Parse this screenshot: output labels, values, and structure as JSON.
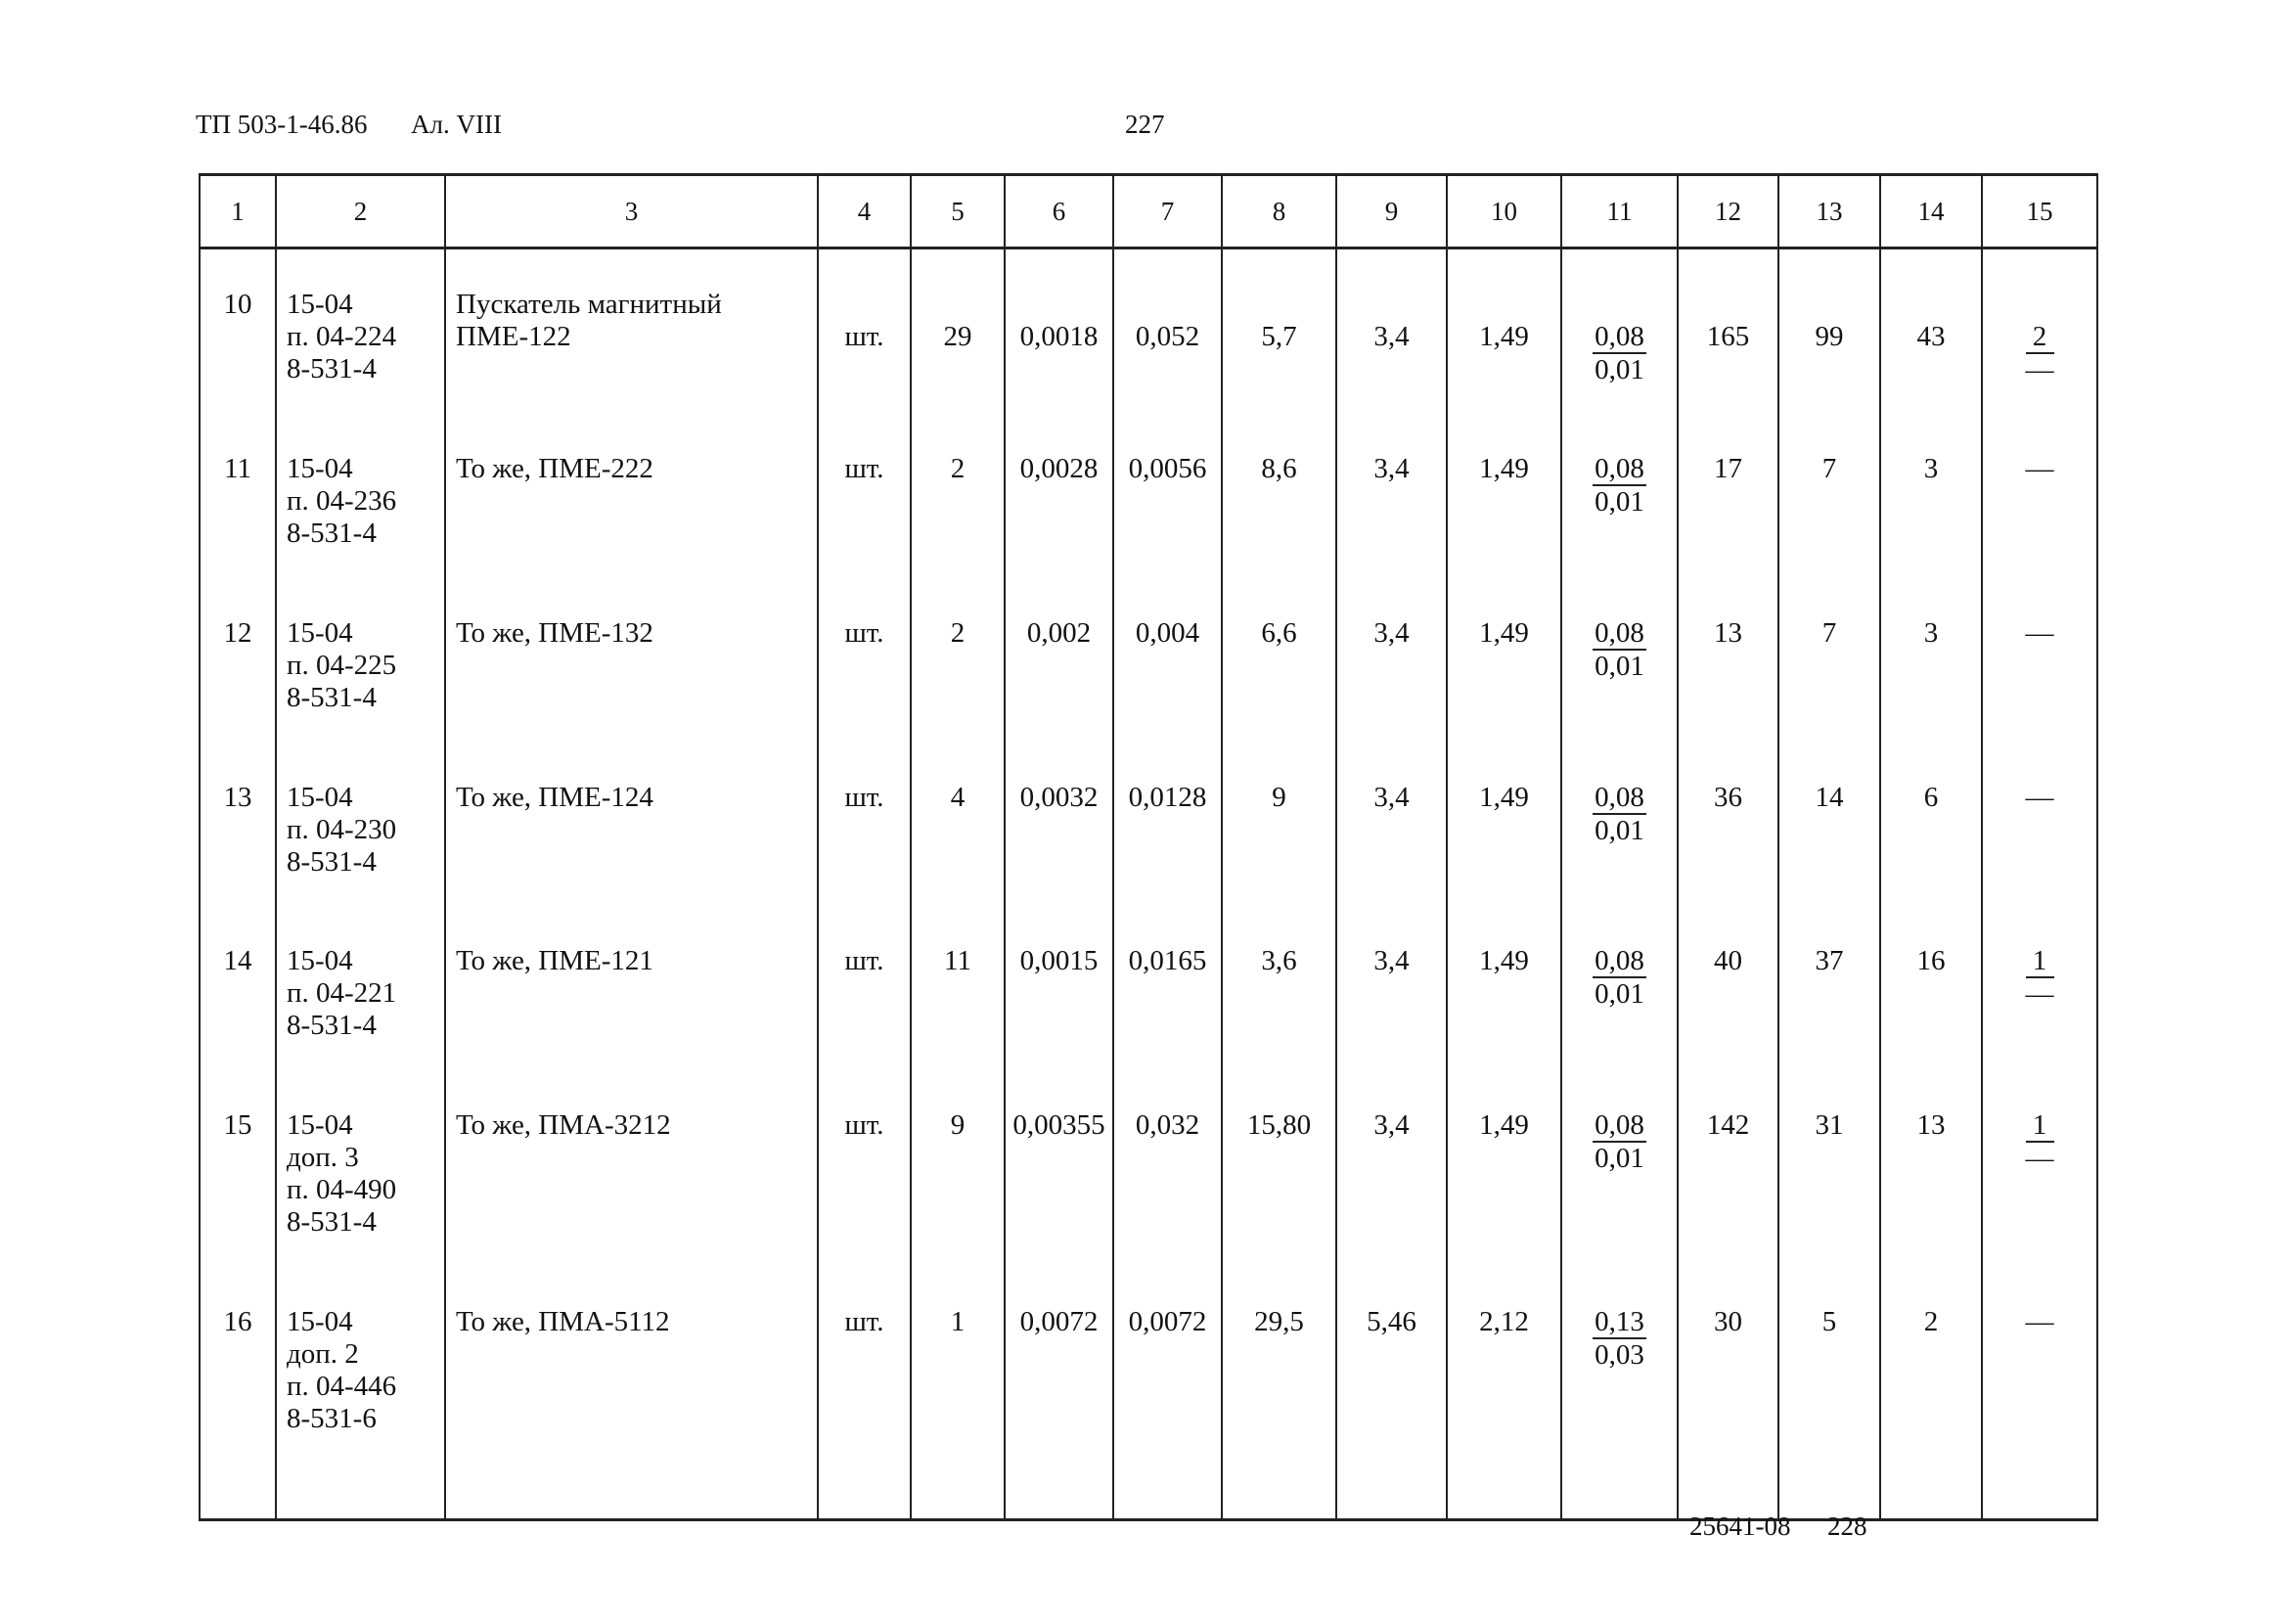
{
  "header": {
    "doc_code": "ТП 503-1-46.86",
    "sheet": "Ал. VIII",
    "page": "227"
  },
  "footer": {
    "code": "25641-08",
    "page": "228"
  },
  "columns": [
    "1",
    "2",
    "3",
    "4",
    "5",
    "6",
    "7",
    "8",
    "9",
    "10",
    "11",
    "12",
    "13",
    "14",
    "15"
  ],
  "rows": [
    {
      "no": "10",
      "ref": [
        "15-04",
        "п. 04-224",
        "8-531-4"
      ],
      "name": [
        "Пускатель магнитный",
        "ПМЕ-122"
      ],
      "unit": "шт.",
      "c5": "29",
      "c6": "0,0018",
      "c7": "0,052",
      "c8": "5,7",
      "c9": "3,4",
      "c10": "1,49",
      "c11": {
        "num": "0,08",
        "den": "0,01"
      },
      "c12": "165",
      "c13": "99",
      "c14": "43",
      "c15": {
        "num": "2",
        "den": "—"
      }
    },
    {
      "no": "11",
      "ref": [
        "15-04",
        "п. 04-236",
        "8-531-4"
      ],
      "name": [
        "То же, ПМЕ-222"
      ],
      "unit": "шт.",
      "c5": "2",
      "c6": "0,0028",
      "c7": "0,0056",
      "c8": "8,6",
      "c9": "3,4",
      "c10": "1,49",
      "c11": {
        "num": "0,08",
        "den": "0,01"
      },
      "c12": "17",
      "c13": "7",
      "c14": "3",
      "c15": "—"
    },
    {
      "no": "12",
      "ref": [
        "15-04",
        "п. 04-225",
        "8-531-4"
      ],
      "name": [
        "То же, ПМЕ-132"
      ],
      "unit": "шт.",
      "c5": "2",
      "c6": "0,002",
      "c7": "0,004",
      "c8": "6,6",
      "c9": "3,4",
      "c10": "1,49",
      "c11": {
        "num": "0,08",
        "den": "0,01"
      },
      "c12": "13",
      "c13": "7",
      "c14": "3",
      "c15": "—"
    },
    {
      "no": "13",
      "ref": [
        "15-04",
        "п. 04-230",
        "8-531-4"
      ],
      "name": [
        "То же, ПМЕ-124"
      ],
      "unit": "шт.",
      "c5": "4",
      "c6": "0,0032",
      "c7": "0,0128",
      "c8": "9",
      "c9": "3,4",
      "c10": "1,49",
      "c11": {
        "num": "0,08",
        "den": "0,01"
      },
      "c12": "36",
      "c13": "14",
      "c14": "6",
      "c15": "—"
    },
    {
      "no": "14",
      "ref": [
        "15-04",
        "п. 04-221",
        "8-531-4"
      ],
      "name": [
        "То же, ПМЕ-121"
      ],
      "unit": "шт.",
      "c5": "11",
      "c6": "0,0015",
      "c7": "0,0165",
      "c8": "3,6",
      "c9": "3,4",
      "c10": "1,49",
      "c11": {
        "num": "0,08",
        "den": "0,01"
      },
      "c12": "40",
      "c13": "37",
      "c14": "16",
      "c15": {
        "num": "1",
        "den": "—"
      }
    },
    {
      "no": "15",
      "ref": [
        "15-04",
        "доп. 3",
        "п. 04-490",
        "8-531-4"
      ],
      "name": [
        "То же, ПМА-3212"
      ],
      "unit": "шт.",
      "c5": "9",
      "c6": "0,00355",
      "c7": "0,032",
      "c8": "15,80",
      "c9": "3,4",
      "c10": "1,49",
      "c11": {
        "num": "0,08",
        "den": "0,01"
      },
      "c12": "142",
      "c13": "31",
      "c14": "13",
      "c15": {
        "num": "1",
        "den": "—"
      }
    },
    {
      "no": "16",
      "ref": [
        "15-04",
        "доп. 2",
        "п. 04-446",
        "8-531-6"
      ],
      "name": [
        "То же, ПМА-5112"
      ],
      "unit": "шт.",
      "c5": "1",
      "c6": "0,0072",
      "c7": "0,0072",
      "c8": "29,5",
      "c9": "5,46",
      "c10": "2,12",
      "c11": {
        "num": "0,13",
        "den": "0,03"
      },
      "c12": "30",
      "c13": "5",
      "c14": "2",
      "c15": "—"
    }
  ]
}
